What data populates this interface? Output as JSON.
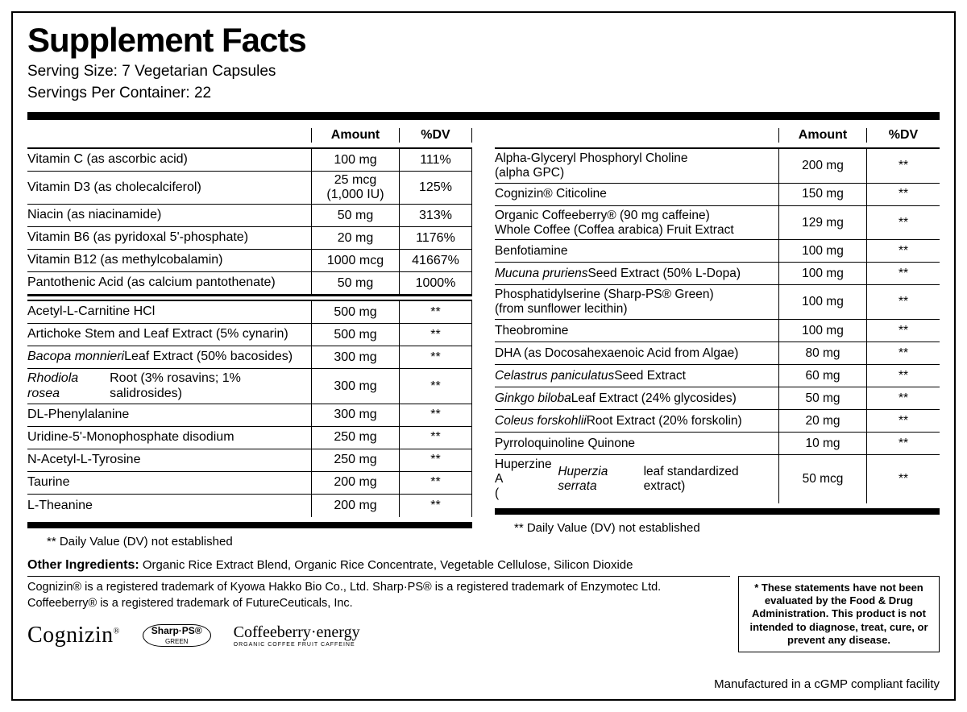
{
  "title": "Supplement Facts",
  "serving_size": "Serving Size: 7 Vegetarian Capsules",
  "servings_per": "Servings Per Container: 22",
  "headers": {
    "amount": "Amount",
    "dv": "%DV"
  },
  "left": {
    "group1": [
      {
        "name": "Vitamin C (as ascorbic acid)",
        "amt": "100 mg",
        "dv": "111%"
      },
      {
        "name": "Vitamin D3  (as cholecalciferol)",
        "amt": "25 mcg (1,000 IU)",
        "dv": "125%"
      },
      {
        "name": "Niacin (as niacinamide)",
        "amt": "50 mg",
        "dv": "313%"
      },
      {
        "name": "Vitamin B6 (as pyridoxal 5'-phosphate)",
        "amt": "20 mg",
        "dv": "1176%"
      },
      {
        "name": "Vitamin B12 (as methylcobalamin)",
        "amt": "1000 mcg",
        "dv": "41667%"
      },
      {
        "name": "Pantothenic Acid (as calcium pantothenate)",
        "amt": "50 mg",
        "dv": "1000%"
      }
    ],
    "group2": [
      {
        "name": "Acetyl-L-Carnitine HCl",
        "amt": "500 mg",
        "dv": "**"
      },
      {
        "name": "Artichoke Stem and Leaf Extract (5% cynarin)",
        "amt": "500 mg",
        "dv": "**"
      },
      {
        "name_html": "<span class='ital'>Bacopa monnieri</span> Leaf Extract (50% bacosides)",
        "amt": "300 mg",
        "dv": "**"
      },
      {
        "name_html": "<span class='ital'>Rhodiola rosea</span> Root (3% rosavins; 1% salidrosides)",
        "amt": "300 mg",
        "dv": "**"
      },
      {
        "name": "DL-Phenylalanine",
        "amt": "300 mg",
        "dv": "**"
      },
      {
        "name": "Uridine-5'-Monophosphate disodium",
        "amt": "250 mg",
        "dv": "**"
      },
      {
        "name": "N-Acetyl-L-Tyrosine",
        "amt": "250 mg",
        "dv": "**"
      },
      {
        "name": "Taurine",
        "amt": "200 mg",
        "dv": "**"
      },
      {
        "name": "L-Theanine",
        "amt": "200 mg",
        "dv": "**"
      }
    ]
  },
  "right": {
    "group1": [
      {
        "name_html": "Alpha-Glyceryl Phosphoryl Choline<br>(alpha GPC)",
        "amt": "200 mg",
        "dv": "**"
      },
      {
        "name": "Cognizin® Citicoline",
        "amt": "150 mg",
        "dv": "**"
      },
      {
        "name_html": "Organic Coffeeberry® (90 mg caffeine)<br>Whole Coffee (Coffea arabica) Fruit Extract",
        "amt": "129 mg",
        "dv": "**"
      },
      {
        "name": "Benfotiamine",
        "amt": "100 mg",
        "dv": "**"
      },
      {
        "name_html": "<span class='ital'>Mucuna pruriens</span> Seed Extract (50% L-Dopa)",
        "amt": "100 mg",
        "dv": "**"
      },
      {
        "name_html": "Phosphatidylserine (Sharp-PS® Green)<br>(from sunflower lecithin)",
        "amt": "100 mg",
        "dv": "**"
      },
      {
        "name": "Theobromine",
        "amt": "100 mg",
        "dv": "**"
      },
      {
        "name": "DHA (as Docosahexaenoic Acid from Algae)",
        "amt": "80 mg",
        "dv": "**"
      },
      {
        "name_html": "<span class='ital'>Celastrus paniculatus</span> Seed Extract",
        "amt": "60 mg",
        "dv": "**"
      },
      {
        "name_html": "<span class='ital'>Ginkgo biloba</span> Leaf Extract (24% glycosides)",
        "amt": "50 mg",
        "dv": "**"
      },
      {
        "name_html": "<span class='ital'>Coleus forskohlii</span> Root Extract (20% forskolin)",
        "amt": "20 mg",
        "dv": "**"
      },
      {
        "name": "Pyrroloquinoline Quinone",
        "amt": "10 mg",
        "dv": "**"
      },
      {
        "name_html": "Huperzine A<br>(<span class='ital'>Huperzia serrata</span> leaf standardized extract)",
        "amt": "50 mcg",
        "dv": "**"
      }
    ]
  },
  "dv_note": "** Daily Value (DV) not established",
  "other_ing_label": "Other Ingredients:",
  "other_ing_text": " Organic Rice Extract Blend, Organic Rice Concentrate, Vegetable Cellulose, Silicon Dioxide",
  "tm_note1": "Cognizin® is a registered trademark of Kyowa Hakko Bio Co., Ltd. Sharp·PS® is a registered trademark of Enzymotec Ltd.",
  "tm_note2": "Coffeeberry® is a registered trademark of FutureCeuticals, Inc.",
  "disclaimer": "* These statements have not been evaluated by the Food & Drug Administration. This product is not intended to diagnose, treat, cure, or prevent any disease.",
  "mfg": "Manufactured in a cGMP compliant facility",
  "logos": {
    "cognizin": "Cognizin",
    "sharp": "Sharp·PS®",
    "sharp_sub": "GREEN",
    "coffee": "Coffeeberry·energy",
    "coffee_sub": "ORGANIC COFFEE FRUIT CAFFEINE"
  }
}
